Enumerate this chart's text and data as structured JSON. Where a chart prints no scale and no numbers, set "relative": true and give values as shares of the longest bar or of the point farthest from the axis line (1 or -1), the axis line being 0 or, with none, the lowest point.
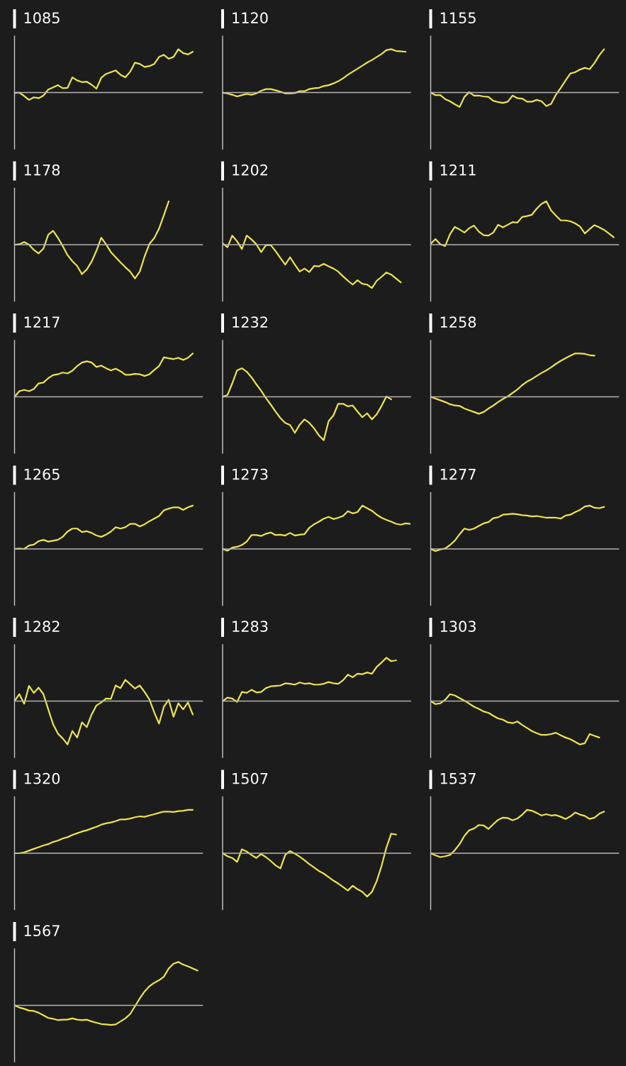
{
  "chart_data": [
    {
      "type": "line",
      "title": "1085",
      "relative": true,
      "color": "#ece44c",
      "categories": [
        null,
        null,
        null,
        null,
        null,
        null,
        null,
        null,
        null,
        null,
        null,
        null,
        null,
        null,
        null,
        null,
        null,
        null,
        null,
        null,
        null,
        null,
        null,
        null,
        null,
        null,
        null,
        null,
        null,
        null,
        null,
        null,
        null,
        null,
        null,
        null,
        null,
        null,
        null,
        null
      ],
      "values": [
        -0.01,
        0.0,
        -0.08,
        -0.17,
        -0.11,
        -0.13,
        -0.07,
        0.07,
        0.12,
        0.17,
        0.1,
        0.11,
        0.35,
        0.28,
        0.24,
        0.25,
        0.18,
        0.09,
        0.34,
        0.43,
        0.47,
        0.51,
        0.41,
        0.35,
        0.48,
        0.69,
        0.66,
        0.59,
        0.61,
        0.66,
        0.82,
        0.87,
        0.78,
        0.82,
        1.0,
        0.91,
        0.88,
        0.94,
        null,
        null
      ]
    },
    {
      "type": "line",
      "title": "1120",
      "relative": true,
      "color": "#ece44c",
      "categories": [
        null,
        null,
        null,
        null,
        null,
        null,
        null,
        null,
        null,
        null,
        null,
        null,
        null,
        null,
        null,
        null,
        null,
        null,
        null,
        null,
        null,
        null,
        null,
        null,
        null,
        null,
        null,
        null,
        null,
        null,
        null,
        null,
        null,
        null,
        null,
        null,
        null,
        null,
        null,
        null
      ],
      "values": [
        0.0,
        -0.02,
        -0.05,
        -0.09,
        -0.06,
        -0.03,
        -0.05,
        -0.02,
        0.04,
        0.08,
        0.08,
        0.05,
        0.02,
        -0.02,
        -0.02,
        -0.01,
        0.03,
        0.03,
        0.08,
        0.1,
        0.11,
        0.15,
        0.17,
        0.21,
        0.26,
        0.33,
        0.41,
        0.48,
        0.55,
        0.62,
        0.69,
        0.75,
        0.82,
        0.89,
        0.98,
        1.0,
        0.96,
        0.95,
        0.94,
        null
      ]
    },
    {
      "type": "line",
      "title": "1155",
      "relative": true,
      "color": "#ece44c",
      "categories": [
        null,
        null,
        null,
        null,
        null,
        null,
        null,
        null,
        null,
        null,
        null,
        null,
        null,
        null,
        null,
        null,
        null,
        null,
        null,
        null,
        null,
        null,
        null,
        null,
        null,
        null,
        null,
        null,
        null,
        null,
        null,
        null,
        null,
        null,
        null,
        null,
        null,
        null,
        null,
        null
      ],
      "values": [
        0.0,
        -0.06,
        -0.06,
        -0.15,
        -0.2,
        -0.27,
        -0.33,
        -0.1,
        0.01,
        -0.07,
        -0.07,
        -0.09,
        -0.1,
        -0.19,
        -0.22,
        -0.24,
        -0.21,
        -0.07,
        -0.13,
        -0.14,
        -0.21,
        -0.21,
        -0.17,
        -0.2,
        -0.31,
        -0.26,
        -0.05,
        0.11,
        0.28,
        0.44,
        0.47,
        0.53,
        0.57,
        0.54,
        0.68,
        0.86,
        1.0,
        null,
        null,
        null
      ]
    },
    {
      "type": "line",
      "title": "1178",
      "relative": true,
      "color": "#ece44c",
      "categories": [
        null,
        null,
        null,
        null,
        null,
        null,
        null,
        null,
        null,
        null,
        null,
        null,
        null,
        null,
        null,
        null,
        null,
        null,
        null,
        null,
        null,
        null,
        null,
        null,
        null,
        null,
        null,
        null,
        null,
        null,
        null,
        null,
        null,
        null,
        null,
        null,
        null,
        null,
        null,
        null
      ],
      "values": [
        0.0,
        0.01,
        0.06,
        0.0,
        -0.12,
        -0.2,
        -0.09,
        0.23,
        0.32,
        0.16,
        -0.03,
        -0.24,
        -0.38,
        -0.49,
        -0.68,
        -0.57,
        -0.39,
        -0.14,
        0.16,
        0.01,
        -0.17,
        -0.29,
        -0.41,
        -0.52,
        -0.62,
        -0.78,
        -0.62,
        -0.27,
        0.02,
        0.15,
        0.37,
        0.68,
        1.0,
        null,
        null,
        null,
        null,
        null,
        null,
        null
      ]
    },
    {
      "type": "line",
      "title": "1202",
      "relative": true,
      "color": "#ece44c",
      "categories": [
        null,
        null,
        null,
        null,
        null,
        null,
        null,
        null,
        null,
        null,
        null,
        null,
        null,
        null,
        null,
        null,
        null,
        null,
        null,
        null,
        null,
        null,
        null,
        null,
        null,
        null,
        null,
        null,
        null,
        null,
        null,
        null,
        null,
        null,
        null,
        null,
        null,
        null,
        null,
        null
      ],
      "values": [
        0.03,
        -0.06,
        0.21,
        0.08,
        -0.1,
        0.21,
        0.12,
        0.01,
        -0.17,
        -0.01,
        -0.01,
        -0.15,
        -0.31,
        -0.46,
        -0.29,
        -0.46,
        -0.62,
        -0.55,
        -0.63,
        -0.49,
        -0.5,
        -0.44,
        -0.5,
        -0.55,
        -0.62,
        -0.73,
        -0.83,
        -0.92,
        -0.82,
        -0.9,
        -0.92,
        -1.0,
        -0.83,
        -0.74,
        -0.64,
        -0.69,
        -0.78,
        -0.87,
        null,
        null
      ]
    },
    {
      "type": "line",
      "title": "1211",
      "relative": true,
      "color": "#ece44c",
      "categories": [
        null,
        null,
        null,
        null,
        null,
        null,
        null,
        null,
        null,
        null,
        null,
        null,
        null,
        null,
        null,
        null,
        null,
        null,
        null,
        null,
        null,
        null,
        null,
        null,
        null,
        null,
        null,
        null,
        null,
        null,
        null,
        null,
        null,
        null,
        null,
        null,
        null,
        null,
        null,
        null
      ],
      "values": [
        0.02,
        0.13,
        0.01,
        -0.03,
        0.24,
        0.41,
        0.35,
        0.28,
        0.38,
        0.44,
        0.3,
        0.22,
        0.21,
        0.28,
        0.46,
        0.4,
        0.46,
        0.52,
        0.51,
        0.64,
        0.66,
        0.69,
        0.83,
        0.94,
        1.0,
        0.79,
        0.67,
        0.56,
        0.56,
        0.54,
        0.49,
        0.42,
        0.26,
        0.36,
        0.45,
        0.4,
        0.34,
        0.26,
        0.17,
        null
      ]
    },
    {
      "type": "line",
      "title": "1217",
      "relative": true,
      "color": "#ece44c",
      "categories": [
        null,
        null,
        null,
        null,
        null,
        null,
        null,
        null,
        null,
        null,
        null,
        null,
        null,
        null,
        null,
        null,
        null,
        null,
        null,
        null,
        null,
        null,
        null,
        null,
        null,
        null,
        null,
        null,
        null,
        null,
        null,
        null,
        null,
        null,
        null,
        null,
        null,
        null,
        null,
        null
      ],
      "values": [
        0.0,
        0.13,
        0.16,
        0.13,
        0.18,
        0.31,
        0.33,
        0.43,
        0.5,
        0.52,
        0.56,
        0.54,
        0.6,
        0.71,
        0.79,
        0.82,
        0.79,
        0.69,
        0.72,
        0.66,
        0.61,
        0.65,
        0.59,
        0.51,
        0.51,
        0.53,
        0.52,
        0.48,
        0.52,
        0.62,
        0.71,
        0.91,
        0.89,
        0.87,
        0.9,
        0.85,
        0.9,
        1.0,
        null,
        null
      ]
    },
    {
      "type": "line",
      "title": "1232",
      "relative": true,
      "color": "#ece44c",
      "categories": [
        null,
        null,
        null,
        null,
        null,
        null,
        null,
        null,
        null,
        null,
        null,
        null,
        null,
        null,
        null,
        null,
        null,
        null,
        null,
        null,
        null,
        null,
        null,
        null,
        null,
        null,
        null,
        null,
        null,
        null,
        null,
        null,
        null,
        null,
        null,
        null,
        null,
        null,
        null,
        null
      ],
      "values": [
        0.0,
        0.04,
        0.31,
        0.61,
        0.66,
        0.58,
        0.45,
        0.29,
        0.14,
        -0.03,
        -0.18,
        -0.34,
        -0.49,
        -0.6,
        -0.65,
        -0.83,
        -0.64,
        -0.52,
        -0.6,
        -0.73,
        -0.89,
        -1.0,
        -0.56,
        -0.43,
        -0.16,
        -0.16,
        -0.22,
        -0.2,
        -0.34,
        -0.47,
        -0.38,
        -0.52,
        -0.4,
        -0.21,
        0.01,
        -0.06,
        null,
        null,
        null,
        null
      ]
    },
    {
      "type": "line",
      "title": "1258",
      "relative": true,
      "color": "#ece44c",
      "categories": [
        null,
        null,
        null,
        null,
        null,
        null,
        null,
        null,
        null,
        null,
        null,
        null,
        null,
        null,
        null,
        null,
        null,
        null,
        null,
        null,
        null,
        null,
        null,
        null,
        null,
        null,
        null,
        null,
        null,
        null,
        null,
        null,
        null,
        null,
        null,
        null,
        null,
        null,
        null,
        null
      ],
      "values": [
        0.0,
        -0.04,
        -0.08,
        -0.12,
        -0.17,
        -0.2,
        -0.21,
        -0.27,
        -0.31,
        -0.35,
        -0.39,
        -0.35,
        -0.27,
        -0.2,
        -0.12,
        -0.05,
        0.01,
        0.09,
        0.17,
        0.27,
        0.35,
        0.41,
        0.48,
        0.55,
        0.61,
        0.68,
        0.76,
        0.83,
        0.89,
        0.95,
        1.0,
        1.0,
        0.99,
        0.96,
        0.95,
        null,
        null,
        null,
        null,
        null
      ]
    },
    {
      "type": "line",
      "title": "1265",
      "relative": true,
      "color": "#ece44c",
      "categories": [
        null,
        null,
        null,
        null,
        null,
        null,
        null,
        null,
        null,
        null,
        null,
        null,
        null,
        null,
        null,
        null,
        null,
        null,
        null,
        null,
        null,
        null,
        null,
        null,
        null,
        null,
        null,
        null,
        null,
        null,
        null,
        null,
        null,
        null,
        null,
        null,
        null,
        null,
        null,
        null
      ],
      "values": [
        0.0,
        0.01,
        0.0,
        0.08,
        0.1,
        0.18,
        0.21,
        0.17,
        0.19,
        0.21,
        0.28,
        0.4,
        0.47,
        0.47,
        0.39,
        0.41,
        0.37,
        0.31,
        0.28,
        0.33,
        0.4,
        0.5,
        0.47,
        0.5,
        0.58,
        0.58,
        0.52,
        0.57,
        0.64,
        0.7,
        0.76,
        0.89,
        0.93,
        0.96,
        0.96,
        0.9,
        0.96,
        1.0,
        null,
        null
      ]
    },
    {
      "type": "line",
      "title": "1273",
      "relative": true,
      "color": "#ece44c",
      "categories": [
        null,
        null,
        null,
        null,
        null,
        null,
        null,
        null,
        null,
        null,
        null,
        null,
        null,
        null,
        null,
        null,
        null,
        null,
        null,
        null,
        null,
        null,
        null,
        null,
        null,
        null,
        null,
        null,
        null,
        null,
        null,
        null,
        null,
        null,
        null,
        null,
        null,
        null,
        null,
        null
      ],
      "values": [
        0.0,
        -0.04,
        0.03,
        0.05,
        0.09,
        0.17,
        0.32,
        0.32,
        0.3,
        0.35,
        0.38,
        0.32,
        0.33,
        0.31,
        0.37,
        0.31,
        0.33,
        0.34,
        0.49,
        0.57,
        0.63,
        0.7,
        0.74,
        0.69,
        0.72,
        0.76,
        0.87,
        0.82,
        0.85,
        1.0,
        0.94,
        0.88,
        0.79,
        0.72,
        0.67,
        0.63,
        0.58,
        0.56,
        0.59,
        0.58
      ]
    },
    {
      "type": "line",
      "title": "1277",
      "relative": true,
      "color": "#ece44c",
      "categories": [
        null,
        null,
        null,
        null,
        null,
        null,
        null,
        null,
        null,
        null,
        null,
        null,
        null,
        null,
        null,
        null,
        null,
        null,
        null,
        null,
        null,
        null,
        null,
        null,
        null,
        null,
        null,
        null,
        null,
        null,
        null,
        null,
        null,
        null,
        null,
        null,
        null,
        null,
        null,
        null
      ],
      "values": [
        0.0,
        -0.05,
        -0.01,
        0.01,
        0.09,
        0.19,
        0.34,
        0.47,
        0.44,
        0.47,
        0.53,
        0.59,
        0.62,
        0.71,
        0.73,
        0.79,
        0.8,
        0.81,
        0.8,
        0.78,
        0.77,
        0.75,
        0.76,
        0.74,
        0.72,
        0.72,
        0.72,
        0.7,
        0.77,
        0.79,
        0.85,
        0.9,
        0.98,
        1.0,
        0.95,
        0.94,
        0.97,
        null,
        null,
        null
      ]
    },
    {
      "type": "line",
      "title": "1282",
      "relative": true,
      "color": "#ece44c",
      "categories": [
        null,
        null,
        null,
        null,
        null,
        null,
        null,
        null,
        null,
        null,
        null,
        null,
        null,
        null,
        null,
        null,
        null,
        null,
        null,
        null,
        null,
        null,
        null,
        null,
        null,
        null,
        null,
        null,
        null,
        null,
        null,
        null,
        null,
        null,
        null,
        null,
        null,
        null,
        null,
        null
      ],
      "values": [
        0.0,
        0.16,
        -0.06,
        0.35,
        0.19,
        0.31,
        0.16,
        -0.19,
        -0.53,
        -0.75,
        -0.86,
        -1.0,
        -0.69,
        -0.84,
        -0.49,
        -0.6,
        -0.31,
        -0.1,
        -0.03,
        0.06,
        0.05,
        0.36,
        0.3,
        0.49,
        0.39,
        0.29,
        0.36,
        0.21,
        0.04,
        -0.26,
        -0.52,
        -0.13,
        0.03,
        -0.36,
        -0.05,
        -0.19,
        -0.03,
        -0.31,
        null,
        null
      ]
    },
    {
      "type": "line",
      "title": "1283",
      "relative": true,
      "color": "#ece44c",
      "categories": [
        null,
        null,
        null,
        null,
        null,
        null,
        null,
        null,
        null,
        null,
        null,
        null,
        null,
        null,
        null,
        null,
        null,
        null,
        null,
        null,
        null,
        null,
        null,
        null,
        null,
        null,
        null,
        null,
        null,
        null,
        null,
        null,
        null,
        null,
        null,
        null,
        null,
        null,
        null,
        null
      ],
      "values": [
        0.0,
        0.08,
        0.06,
        -0.02,
        0.21,
        0.19,
        0.26,
        0.2,
        0.21,
        0.3,
        0.34,
        0.35,
        0.36,
        0.41,
        0.4,
        0.38,
        0.43,
        0.4,
        0.41,
        0.38,
        0.38,
        0.4,
        0.44,
        0.41,
        0.4,
        0.48,
        0.61,
        0.55,
        0.63,
        0.62,
        0.66,
        0.63,
        0.79,
        0.89,
        1.0,
        0.92,
        0.94,
        null,
        null,
        null
      ]
    },
    {
      "type": "line",
      "title": "1303",
      "relative": true,
      "color": "#ece44c",
      "categories": [
        null,
        null,
        null,
        null,
        null,
        null,
        null,
        null,
        null,
        null,
        null,
        null,
        null,
        null,
        null,
        null,
        null,
        null,
        null,
        null,
        null,
        null,
        null,
        null,
        null,
        null,
        null,
        null,
        null,
        null,
        null,
        null,
        null,
        null,
        null,
        null,
        null,
        null,
        null,
        null
      ],
      "values": [
        0.0,
        -0.07,
        -0.05,
        0.03,
        0.16,
        0.13,
        0.07,
        0.01,
        -0.06,
        -0.13,
        -0.18,
        -0.24,
        -0.27,
        -0.34,
        -0.4,
        -0.43,
        -0.49,
        -0.51,
        -0.47,
        -0.55,
        -0.62,
        -0.69,
        -0.74,
        -0.78,
        -0.78,
        -0.76,
        -0.73,
        -0.79,
        -0.84,
        -0.88,
        -0.94,
        -1.0,
        -0.97,
        -0.76,
        -0.8,
        -0.84,
        null,
        null,
        null,
        null
      ]
    },
    {
      "type": "line",
      "title": "1320",
      "relative": true,
      "color": "#ece44c",
      "categories": [
        null,
        null,
        null,
        null,
        null,
        null,
        null,
        null,
        null,
        null,
        null,
        null,
        null,
        null,
        null,
        null,
        null,
        null,
        null,
        null,
        null,
        null,
        null,
        null,
        null,
        null,
        null,
        null,
        null,
        null,
        null,
        null,
        null,
        null,
        null,
        null,
        null,
        null,
        null,
        null
      ],
      "values": [
        0.0,
        0.0,
        0.02,
        0.06,
        0.1,
        0.14,
        0.18,
        0.21,
        0.26,
        0.29,
        0.34,
        0.37,
        0.42,
        0.46,
        0.5,
        0.53,
        0.57,
        0.61,
        0.66,
        0.69,
        0.71,
        0.74,
        0.78,
        0.78,
        0.8,
        0.83,
        0.85,
        0.84,
        0.87,
        0.9,
        0.93,
        0.96,
        0.96,
        0.95,
        0.97,
        0.98,
        1.0,
        1.0,
        null,
        null
      ]
    },
    {
      "type": "line",
      "title": "1507",
      "relative": true,
      "color": "#ece44c",
      "categories": [
        null,
        null,
        null,
        null,
        null,
        null,
        null,
        null,
        null,
        null,
        null,
        null,
        null,
        null,
        null,
        null,
        null,
        null,
        null,
        null,
        null,
        null,
        null,
        null,
        null,
        null,
        null,
        null,
        null,
        null,
        null,
        null,
        null,
        null,
        null,
        null,
        null,
        null,
        null,
        null
      ],
      "values": [
        0.0,
        -0.07,
        -0.11,
        -0.2,
        0.09,
        0.04,
        -0.04,
        -0.11,
        -0.02,
        -0.09,
        -0.18,
        -0.28,
        -0.35,
        -0.04,
        0.05,
        -0.01,
        -0.08,
        -0.16,
        -0.25,
        -0.33,
        -0.41,
        -0.47,
        -0.55,
        -0.63,
        -0.7,
        -0.78,
        -0.86,
        -0.75,
        -0.83,
        -0.89,
        -1.0,
        -0.89,
        -0.64,
        -0.29,
        0.13,
        0.45,
        0.43,
        null,
        null,
        null
      ]
    },
    {
      "type": "line",
      "title": "1537",
      "relative": true,
      "color": "#ece44c",
      "categories": [
        null,
        null,
        null,
        null,
        null,
        null,
        null,
        null,
        null,
        null,
        null,
        null,
        null,
        null,
        null,
        null,
        null,
        null,
        null,
        null,
        null,
        null,
        null,
        null,
        null,
        null,
        null,
        null,
        null,
        null,
        null,
        null,
        null,
        null,
        null,
        null,
        null,
        null,
        null,
        null
      ],
      "values": [
        0.0,
        -0.05,
        -0.09,
        -0.07,
        -0.04,
        0.07,
        0.21,
        0.4,
        0.53,
        0.57,
        0.65,
        0.64,
        0.56,
        0.67,
        0.77,
        0.82,
        0.81,
        0.76,
        0.8,
        0.89,
        1.0,
        0.98,
        0.93,
        0.87,
        0.9,
        0.87,
        0.88,
        0.84,
        0.79,
        0.85,
        0.94,
        0.89,
        0.86,
        0.79,
        0.82,
        0.91,
        0.96,
        null,
        null,
        null
      ]
    },
    {
      "type": "line",
      "title": "1567",
      "relative": true,
      "color": "#ece44c",
      "categories": [
        null,
        null,
        null,
        null,
        null,
        null,
        null,
        null,
        null,
        null,
        null,
        null,
        null,
        null,
        null,
        null,
        null,
        null,
        null,
        null,
        null,
        null,
        null,
        null,
        null,
        null,
        null,
        null,
        null,
        null,
        null,
        null,
        null,
        null,
        null,
        null,
        null,
        null,
        null,
        null
      ],
      "values": [
        0.0,
        -0.05,
        -0.08,
        -0.12,
        -0.13,
        -0.17,
        -0.23,
        -0.29,
        -0.31,
        -0.34,
        -0.33,
        -0.33,
        -0.3,
        -0.33,
        -0.34,
        -0.33,
        -0.37,
        -0.4,
        -0.43,
        -0.44,
        -0.45,
        -0.44,
        -0.37,
        -0.3,
        -0.2,
        -0.02,
        0.16,
        0.32,
        0.44,
        0.52,
        0.58,
        0.66,
        0.85,
        0.96,
        1.0,
        0.94,
        0.9,
        0.85,
        0.8,
        null
      ]
    }
  ]
}
